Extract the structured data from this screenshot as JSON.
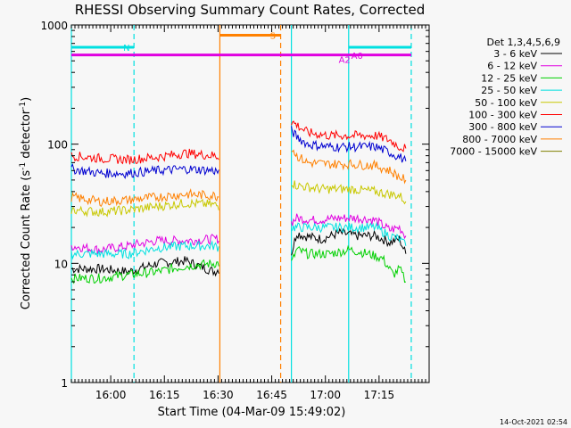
{
  "chart_data": {
    "type": "line",
    "title": "RHESSI Observing Summary Count Rates, Corrected",
    "xlabel": "Start Time (04-Mar-09 15:49:02)",
    "ylabel_main": "Corrected Count Rate (s",
    "ylabel_sup1": "-1",
    "ylabel_mid": " detector",
    "ylabel_sup2": "-1",
    "ylabel_end": ")",
    "yscale": "log",
    "ylim": [
      1,
      1000
    ],
    "xlim_minutes": [
      0,
      100
    ],
    "x_unit": "minutes after 15:49:02",
    "x_ticks": [
      {
        "label": "16:00",
        "value": 11
      },
      {
        "label": "16:15",
        "value": 26
      },
      {
        "label": "16:30",
        "value": 41
      },
      {
        "label": "16:45",
        "value": 56
      },
      {
        "label": "17:00",
        "value": 71
      },
      {
        "label": "17:15",
        "value": 86
      }
    ],
    "y_ticks": [
      {
        "label": "1",
        "value": 1
      },
      {
        "label": "10",
        "value": 10
      },
      {
        "label": "100",
        "value": 100
      },
      {
        "label": "1000",
        "value": 1000
      }
    ],
    "legend_title": "Det 1,3,4,5,6,9",
    "legend_position": "right",
    "series": [
      {
        "name": "3 - 6 keV",
        "color": "#000000",
        "points": [
          [
            0,
            9
          ],
          [
            8,
            9
          ],
          [
            16,
            8.5
          ],
          [
            24,
            10
          ],
          [
            32,
            10.5
          ],
          [
            40,
            8.5
          ],
          [
            41.5,
            9
          ],
          [
            61.5,
            12
          ],
          [
            63,
            18
          ],
          [
            65,
            17
          ],
          [
            70,
            16
          ],
          [
            75,
            18
          ],
          [
            80,
            17
          ],
          [
            85,
            17
          ],
          [
            89,
            15
          ],
          [
            91.7,
            16
          ],
          [
            93.5,
            12
          ]
        ]
      },
      {
        "name": "6 - 12 keV",
        "color": "#e000e0",
        "points": [
          [
            0,
            14
          ],
          [
            8,
            13
          ],
          [
            16,
            14
          ],
          [
            24,
            15.5
          ],
          [
            32,
            15.5
          ],
          [
            40,
            16
          ],
          [
            41.5,
            16
          ],
          [
            61.5,
            22
          ],
          [
            63,
            24
          ],
          [
            68,
            23
          ],
          [
            75,
            24
          ],
          [
            80,
            24
          ],
          [
            85,
            23
          ],
          [
            89,
            19
          ],
          [
            91.7,
            20
          ],
          [
            93.5,
            17
          ]
        ]
      },
      {
        "name": "12 - 25 keV",
        "color": "#00d000",
        "points": [
          [
            0,
            7.5
          ],
          [
            8,
            7.5
          ],
          [
            16,
            8
          ],
          [
            24,
            8.5
          ],
          [
            32,
            9.5
          ],
          [
            40,
            10
          ],
          [
            41.5,
            10
          ],
          [
            61.5,
            10
          ],
          [
            63,
            13
          ],
          [
            66,
            12
          ],
          [
            72,
            12
          ],
          [
            78,
            13
          ],
          [
            83,
            12
          ],
          [
            87,
            11
          ],
          [
            90,
            8
          ],
          [
            91.7,
            9
          ],
          [
            93.5,
            7
          ]
        ]
      },
      {
        "name": "25 - 50 keV",
        "color": "#00e0e0",
        "points": [
          [
            0,
            12
          ],
          [
            8,
            12
          ],
          [
            16,
            12
          ],
          [
            24,
            13.5
          ],
          [
            32,
            14
          ],
          [
            40,
            14
          ],
          [
            41.5,
            13.5
          ],
          [
            61.5,
            20
          ],
          [
            63,
            20
          ],
          [
            70,
            20
          ],
          [
            78,
            20
          ],
          [
            85,
            20
          ],
          [
            89,
            17
          ],
          [
            91.7,
            16
          ],
          [
            93.5,
            14
          ]
        ]
      },
      {
        "name": "50 - 100 keV",
        "color": "#c8c800",
        "points": [
          [
            0,
            28
          ],
          [
            8,
            27
          ],
          [
            16,
            28
          ],
          [
            24,
            30
          ],
          [
            32,
            32
          ],
          [
            40,
            31
          ],
          [
            41.5,
            30
          ],
          [
            61.5,
            48
          ],
          [
            63,
            45
          ],
          [
            70,
            42
          ],
          [
            78,
            42
          ],
          [
            85,
            40
          ],
          [
            89,
            38
          ],
          [
            91.7,
            37
          ],
          [
            93.5,
            33
          ]
        ]
      },
      {
        "name": "100 - 300 keV",
        "color": "#ff0000",
        "points": [
          [
            0,
            80
          ],
          [
            8,
            76
          ],
          [
            16,
            74
          ],
          [
            24,
            78
          ],
          [
            32,
            84
          ],
          [
            40,
            80
          ],
          [
            41.5,
            78
          ],
          [
            61.5,
            155
          ],
          [
            63,
            145
          ],
          [
            66,
            125
          ],
          [
            72,
            118
          ],
          [
            78,
            118
          ],
          [
            85,
            118
          ],
          [
            89,
            108
          ],
          [
            91.7,
            95
          ],
          [
            93.5,
            92
          ]
        ]
      },
      {
        "name": "300 - 800 keV",
        "color": "#0000d0",
        "points": [
          [
            0,
            62
          ],
          [
            8,
            57
          ],
          [
            16,
            57
          ],
          [
            24,
            60
          ],
          [
            32,
            62
          ],
          [
            40,
            60
          ],
          [
            41.5,
            58
          ],
          [
            61.5,
            130
          ],
          [
            63,
            115
          ],
          [
            66,
            100
          ],
          [
            72,
            95
          ],
          [
            78,
            95
          ],
          [
            85,
            95
          ],
          [
            89,
            85
          ],
          [
            91.7,
            78
          ],
          [
            93.5,
            72
          ]
        ]
      },
      {
        "name": "800 - 7000 keV",
        "color": "#ff8000",
        "points": [
          [
            0,
            36
          ],
          [
            8,
            33
          ],
          [
            16,
            34
          ],
          [
            24,
            36
          ],
          [
            32,
            38
          ],
          [
            40,
            37
          ],
          [
            41.5,
            36
          ],
          [
            61.5,
            95
          ],
          [
            63,
            80
          ],
          [
            66,
            70
          ],
          [
            72,
            68
          ],
          [
            78,
            68
          ],
          [
            85,
            66
          ],
          [
            89,
            60
          ],
          [
            91.7,
            53
          ],
          [
            93.5,
            50
          ]
        ]
      },
      {
        "name": "7000 - 15000 keV",
        "color": "#808000",
        "points": []
      }
    ],
    "attenuator_bars": [
      {
        "label": "N",
        "color": "#00e0e0",
        "start": 0,
        "end": 17.5,
        "level": 650
      },
      {
        "label": "S",
        "color": "#ff8000",
        "start": 41.5,
        "end": 58.5,
        "level": 820
      },
      {
        "label": "",
        "color": "#00e0e0",
        "start": 77.5,
        "end": 95,
        "level": 650
      },
      {
        "label": "",
        "color": "#e000e0",
        "start": 0,
        "end": 95,
        "level": 560
      }
    ],
    "vertical_lines": [
      {
        "color": "#00e0e0",
        "x": 0,
        "style": "solid"
      },
      {
        "color": "#00e0e0",
        "x": 17.5,
        "style": "dashed"
      },
      {
        "color": "#ff8000",
        "x": 41.5,
        "style": "solid"
      },
      {
        "color": "#ff8000",
        "x": 58.5,
        "style": "dashed"
      },
      {
        "color": "#00e0e0",
        "x": 61.5,
        "style": "solid"
      },
      {
        "color": "#00e0e0",
        "x": 77.5,
        "style": "solid"
      },
      {
        "color": "#00e0e0",
        "x": 95,
        "style": "dashed"
      }
    ],
    "annotations": [
      {
        "text": "A2",
        "color": "#e000e0",
        "x": 78,
        "y": 480
      },
      {
        "text": "A0",
        "color": "#e000e0",
        "x": 81.5,
        "y": 520
      }
    ]
  },
  "footer": {
    "timestamp": "14-Oct-2021 02:54"
  }
}
